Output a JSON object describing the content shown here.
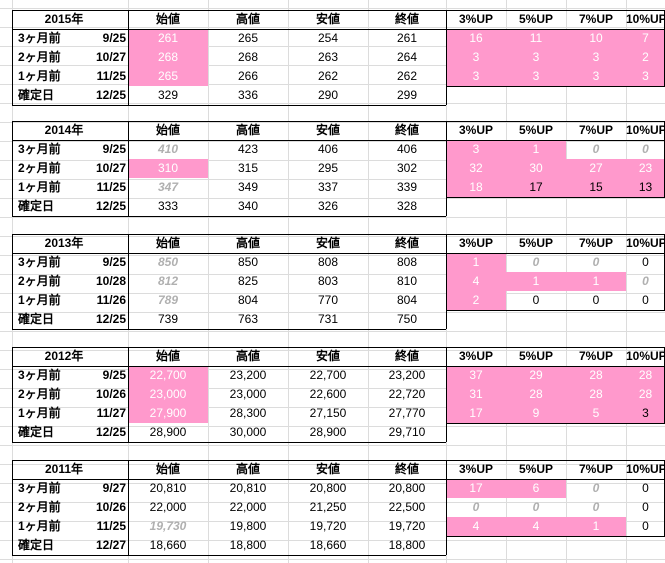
{
  "columns": [
    "始値",
    "高値",
    "安値",
    "終値",
    "3%UP",
    "5%UP",
    "7%UP",
    "10%UP"
  ],
  "tables": [
    {
      "year": "2015年",
      "rows": [
        {
          "label": "3ヶ月前",
          "date": "9/25",
          "cells": [
            {
              "v": "261",
              "s": "pink"
            },
            {
              "v": "265"
            },
            {
              "v": "254"
            },
            {
              "v": "261"
            },
            {
              "v": "16",
              "s": "pink"
            },
            {
              "v": "11",
              "s": "pink"
            },
            {
              "v": "10",
              "s": "pink"
            },
            {
              "v": "7",
              "s": "pink"
            }
          ]
        },
        {
          "label": "2ヶ月前",
          "date": "10/27",
          "cells": [
            {
              "v": "268",
              "s": "pink"
            },
            {
              "v": "268"
            },
            {
              "v": "263"
            },
            {
              "v": "264"
            },
            {
              "v": "3",
              "s": "pink"
            },
            {
              "v": "3",
              "s": "pink"
            },
            {
              "v": "3",
              "s": "pink"
            },
            {
              "v": "2",
              "s": "pink"
            }
          ]
        },
        {
          "label": "1ヶ月前",
          "date": "11/25",
          "cells": [
            {
              "v": "265",
              "s": "pink"
            },
            {
              "v": "266"
            },
            {
              "v": "262"
            },
            {
              "v": "262"
            },
            {
              "v": "3",
              "s": "pink"
            },
            {
              "v": "3",
              "s": "pink"
            },
            {
              "v": "3",
              "s": "pink"
            },
            {
              "v": "3",
              "s": "pink"
            }
          ]
        },
        {
          "label": "確定日",
          "date": "12/25",
          "cells": [
            {
              "v": "329"
            },
            {
              "v": "336"
            },
            {
              "v": "290"
            },
            {
              "v": "299"
            },
            {
              "v": ""
            },
            {
              "v": ""
            },
            {
              "v": ""
            },
            {
              "v": ""
            }
          ]
        }
      ]
    },
    {
      "year": "2014年",
      "rows": [
        {
          "label": "3ヶ月前",
          "date": "9/25",
          "cells": [
            {
              "v": "410",
              "s": "ghost"
            },
            {
              "v": "423"
            },
            {
              "v": "406"
            },
            {
              "v": "406"
            },
            {
              "v": "3",
              "s": "pink"
            },
            {
              "v": "1",
              "s": "pink"
            },
            {
              "v": "0",
              "s": "ghost"
            },
            {
              "v": "0",
              "s": "ghost"
            }
          ]
        },
        {
          "label": "2ヶ月前",
          "date": "10/27",
          "cells": [
            {
              "v": "310",
              "s": "pink"
            },
            {
              "v": "315"
            },
            {
              "v": "295"
            },
            {
              "v": "302"
            },
            {
              "v": "32",
              "s": "pink"
            },
            {
              "v": "30",
              "s": "pink"
            },
            {
              "v": "27",
              "s": "pink"
            },
            {
              "v": "23",
              "s": "pink"
            }
          ]
        },
        {
          "label": "1ヶ月前",
          "date": "11/25",
          "cells": [
            {
              "v": "347",
              "s": "ghost"
            },
            {
              "v": "349"
            },
            {
              "v": "337"
            },
            {
              "v": "339"
            },
            {
              "v": "18",
              "s": "pink"
            },
            {
              "v": "17",
              "s": "pinkdark"
            },
            {
              "v": "15",
              "s": "pinkdark"
            },
            {
              "v": "13",
              "s": "pinkdark"
            }
          ]
        },
        {
          "label": "確定日",
          "date": "12/25",
          "cells": [
            {
              "v": "333"
            },
            {
              "v": "340"
            },
            {
              "v": "326"
            },
            {
              "v": "328"
            },
            {
              "v": ""
            },
            {
              "v": ""
            },
            {
              "v": ""
            },
            {
              "v": ""
            }
          ]
        }
      ]
    },
    {
      "year": "2013年",
      "rows": [
        {
          "label": "3ヶ月前",
          "date": "9/25",
          "cells": [
            {
              "v": "850",
              "s": "ghost"
            },
            {
              "v": "850"
            },
            {
              "v": "808"
            },
            {
              "v": "808"
            },
            {
              "v": "1",
              "s": "pink"
            },
            {
              "v": "0",
              "s": "ghost"
            },
            {
              "v": "0",
              "s": "ghost"
            },
            {
              "v": "0"
            }
          ]
        },
        {
          "label": "2ヶ月前",
          "date": "10/28",
          "cells": [
            {
              "v": "812",
              "s": "ghost"
            },
            {
              "v": "825"
            },
            {
              "v": "803"
            },
            {
              "v": "810"
            },
            {
              "v": "4",
              "s": "pink"
            },
            {
              "v": "1",
              "s": "pink"
            },
            {
              "v": "1",
              "s": "pink"
            },
            {
              "v": "0",
              "s": "ghost"
            }
          ]
        },
        {
          "label": "1ヶ月前",
          "date": "11/26",
          "cells": [
            {
              "v": "789",
              "s": "ghost"
            },
            {
              "v": "804"
            },
            {
              "v": "770"
            },
            {
              "v": "804"
            },
            {
              "v": "2",
              "s": "pink"
            },
            {
              "v": "0"
            },
            {
              "v": "0"
            },
            {
              "v": "0"
            }
          ]
        },
        {
          "label": "確定日",
          "date": "12/25",
          "cells": [
            {
              "v": "739"
            },
            {
              "v": "763"
            },
            {
              "v": "731"
            },
            {
              "v": "750"
            },
            {
              "v": ""
            },
            {
              "v": ""
            },
            {
              "v": ""
            },
            {
              "v": ""
            }
          ]
        }
      ]
    },
    {
      "year": "2012年",
      "rows": [
        {
          "label": "3ヶ月前",
          "date": "9/25",
          "cells": [
            {
              "v": "22,700",
              "s": "pink"
            },
            {
              "v": "23,200"
            },
            {
              "v": "22,700"
            },
            {
              "v": "23,200"
            },
            {
              "v": "37",
              "s": "pink"
            },
            {
              "v": "29",
              "s": "pink"
            },
            {
              "v": "28",
              "s": "pink"
            },
            {
              "v": "28",
              "s": "pink"
            }
          ]
        },
        {
          "label": "2ヶ月前",
          "date": "10/26",
          "cells": [
            {
              "v": "23,000",
              "s": "pink"
            },
            {
              "v": "23,000"
            },
            {
              "v": "22,600"
            },
            {
              "v": "22,720"
            },
            {
              "v": "31",
              "s": "pink"
            },
            {
              "v": "28",
              "s": "pink"
            },
            {
              "v": "28",
              "s": "pink"
            },
            {
              "v": "28",
              "s": "pink"
            }
          ]
        },
        {
          "label": "1ヶ月前",
          "date": "11/27",
          "cells": [
            {
              "v": "27,900",
              "s": "pink"
            },
            {
              "v": "28,300"
            },
            {
              "v": "27,150"
            },
            {
              "v": "27,770"
            },
            {
              "v": "17",
              "s": "pink"
            },
            {
              "v": "9",
              "s": "pink"
            },
            {
              "v": "5",
              "s": "pink"
            },
            {
              "v": "3",
              "s": "pinkdark"
            }
          ]
        },
        {
          "label": "確定日",
          "date": "12/25",
          "cells": [
            {
              "v": "28,900"
            },
            {
              "v": "30,000"
            },
            {
              "v": "28,900"
            },
            {
              "v": "29,710"
            },
            {
              "v": ""
            },
            {
              "v": ""
            },
            {
              "v": ""
            },
            {
              "v": ""
            }
          ]
        }
      ]
    },
    {
      "year": "2011年",
      "rows": [
        {
          "label": "3ヶ月前",
          "date": "9/27",
          "cells": [
            {
              "v": "20,810"
            },
            {
              "v": "20,810"
            },
            {
              "v": "20,800"
            },
            {
              "v": "20,800"
            },
            {
              "v": "17",
              "s": "pink"
            },
            {
              "v": "6",
              "s": "pink"
            },
            {
              "v": "0",
              "s": "ghost"
            },
            {
              "v": "0"
            }
          ]
        },
        {
          "label": "2ヶ月前",
          "date": "10/26",
          "cells": [
            {
              "v": "22,000"
            },
            {
              "v": "22,000"
            },
            {
              "v": "21,250"
            },
            {
              "v": "22,500"
            },
            {
              "v": "0",
              "s": "ghost"
            },
            {
              "v": "0",
              "s": "ghost"
            },
            {
              "v": "0",
              "s": "ghost"
            },
            {
              "v": "0"
            }
          ]
        },
        {
          "label": "1ヶ月前",
          "date": "11/25",
          "cells": [
            {
              "v": "19,730",
              "s": "ghost"
            },
            {
              "v": "19,800"
            },
            {
              "v": "19,720"
            },
            {
              "v": "19,720"
            },
            {
              "v": "4",
              "s": "pink"
            },
            {
              "v": "4",
              "s": "pink"
            },
            {
              "v": "1",
              "s": "pink"
            },
            {
              "v": "0"
            }
          ]
        },
        {
          "label": "確定日",
          "date": "12/27",
          "cells": [
            {
              "v": "18,660"
            },
            {
              "v": "18,800"
            },
            {
              "v": "18,660"
            },
            {
              "v": "18,800"
            },
            {
              "v": ""
            },
            {
              "v": ""
            },
            {
              "v": ""
            },
            {
              "v": ""
            }
          ]
        }
      ]
    }
  ]
}
